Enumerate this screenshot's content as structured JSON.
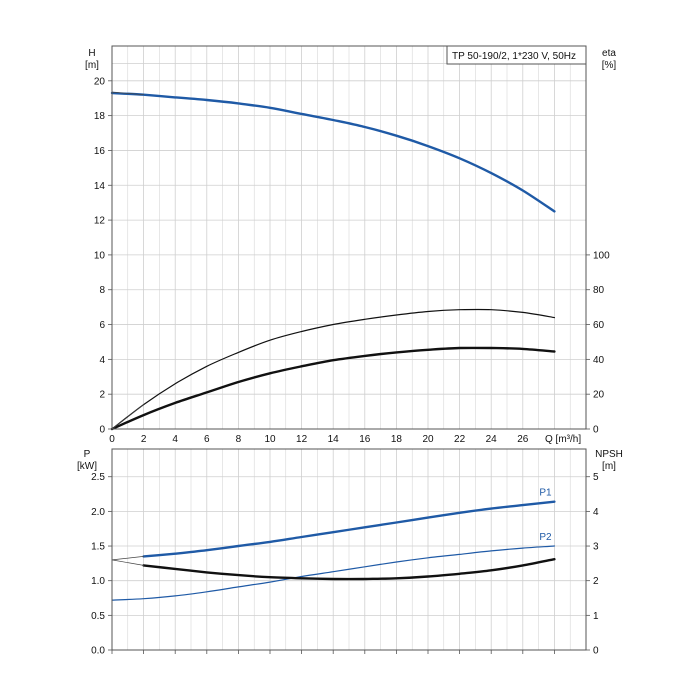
{
  "title": "TP 50-190/2, 1*230 V, 50Hz",
  "colors": {
    "blue": "#1f5aa6",
    "black": "#111111",
    "grid": "#cfcfcf",
    "frame": "#555555"
  },
  "chart_data": [
    {
      "type": "line",
      "name": "head-efficiency",
      "title": "TP 50-190/2, 1*230 V, 50Hz",
      "xlabel": "Q [m³/h]",
      "ylabel": "H",
      "ylabel_unit": "[m]",
      "y2label": "eta",
      "y2label_unit": "[%]",
      "xlim": [
        0,
        30
      ],
      "ylim": [
        0,
        22
      ],
      "y2lim": [
        0,
        220
      ],
      "xticks": [
        "0",
        "2",
        "4",
        "6",
        "8",
        "10",
        "12",
        "14",
        "16",
        "18",
        "20",
        "22",
        "24",
        "26"
      ],
      "yticks": [
        "0",
        "2",
        "4",
        "6",
        "8",
        "10",
        "12",
        "14",
        "16",
        "18",
        "20"
      ],
      "y2ticks": [
        "0",
        "20",
        "40",
        "60",
        "80",
        "100"
      ],
      "grid": true,
      "series": [
        {
          "key": "H",
          "color": "#1f5aa6",
          "width": 2.4,
          "axis": "y",
          "x": [
            0,
            2,
            4,
            6,
            8,
            10,
            12,
            14,
            16,
            18,
            20,
            22,
            24,
            26,
            28
          ],
          "y": [
            19.3,
            19.2,
            19.05,
            18.9,
            18.7,
            18.45,
            18.1,
            17.75,
            17.35,
            16.85,
            16.25,
            15.55,
            14.7,
            13.7,
            12.5
          ]
        },
        {
          "key": "eta_thin",
          "color": "#111111",
          "width": 1.2,
          "axis": "y2",
          "x": [
            0,
            2,
            4,
            6,
            8,
            10,
            12,
            14,
            16,
            18,
            20,
            22,
            24,
            26,
            28
          ],
          "y": [
            0,
            14,
            26,
            36,
            44,
            51,
            56,
            60,
            63,
            65.5,
            67.5,
            68.5,
            68.5,
            67,
            64
          ]
        },
        {
          "key": "eta_thick",
          "color": "#111111",
          "width": 2.4,
          "axis": "y2",
          "x": [
            0,
            2,
            4,
            6,
            8,
            10,
            12,
            14,
            16,
            18,
            20,
            22,
            24,
            26,
            28
          ],
          "y": [
            0,
            8,
            15,
            21,
            27,
            32,
            36,
            39.5,
            42,
            44,
            45.5,
            46.5,
            46.5,
            46,
            44.5
          ]
        },
        {
          "key": "H_ext",
          "color": "#444444",
          "width": 0.7,
          "axis": "y",
          "x": [
            0,
            2
          ],
          "y": [
            19.35,
            19.2
          ]
        },
        {
          "key": "eta_ext",
          "color": "#444444",
          "width": 0.7,
          "axis": "y2",
          "x": [
            0,
            2
          ],
          "y": [
            0,
            14
          ]
        }
      ]
    },
    {
      "type": "line",
      "name": "power-npsh",
      "xlabel": "",
      "ylabel": "P",
      "ylabel_unit": "[kW]",
      "y2label": "NPSH",
      "y2label_unit": "[m]",
      "xlim": [
        0,
        30
      ],
      "ylim": [
        0,
        2.9
      ],
      "y2lim": [
        0,
        5.8
      ],
      "yticks": [
        "0.0",
        "0.5",
        "1.0",
        "1.5",
        "2.0",
        "2.5"
      ],
      "y2ticks": [
        "0",
        "1",
        "2",
        "3",
        "4",
        "5"
      ],
      "grid": true,
      "series": [
        {
          "key": "P1",
          "name": "P1",
          "color": "#1f5aa6",
          "width": 2.4,
          "axis": "y",
          "x": [
            2,
            4,
            6,
            8,
            10,
            12,
            14,
            16,
            18,
            20,
            22,
            24,
            26,
            28
          ],
          "y": [
            1.35,
            1.39,
            1.44,
            1.5,
            1.56,
            1.63,
            1.7,
            1.77,
            1.84,
            1.91,
            1.98,
            2.04,
            2.09,
            2.14
          ]
        },
        {
          "key": "P2",
          "name": "P2",
          "color": "#1f5aa6",
          "width": 1.2,
          "axis": "y",
          "x": [
            0,
            2,
            4,
            6,
            8,
            10,
            12,
            14,
            16,
            18,
            20,
            22,
            24,
            26,
            28
          ],
          "y": [
            0.72,
            0.74,
            0.78,
            0.84,
            0.91,
            0.98,
            1.06,
            1.13,
            1.2,
            1.27,
            1.33,
            1.38,
            1.43,
            1.47,
            1.5
          ]
        },
        {
          "key": "NPSH",
          "color": "#111111",
          "width": 2.4,
          "axis": "y2",
          "x": [
            2,
            4,
            6,
            8,
            10,
            12,
            14,
            16,
            18,
            20,
            22,
            24,
            26,
            28
          ],
          "y": [
            2.44,
            2.34,
            2.24,
            2.16,
            2.1,
            2.07,
            2.05,
            2.05,
            2.07,
            2.12,
            2.2,
            2.3,
            2.44,
            2.62
          ]
        },
        {
          "key": "P1_ext",
          "color": "#444444",
          "width": 0.7,
          "axis": "y",
          "x": [
            0,
            2
          ],
          "y": [
            1.3,
            1.35
          ]
        },
        {
          "key": "NPSH_ext",
          "color": "#444444",
          "width": 0.7,
          "axis": "y2",
          "x": [
            0,
            2
          ],
          "y": [
            2.6,
            2.44
          ]
        }
      ]
    }
  ]
}
